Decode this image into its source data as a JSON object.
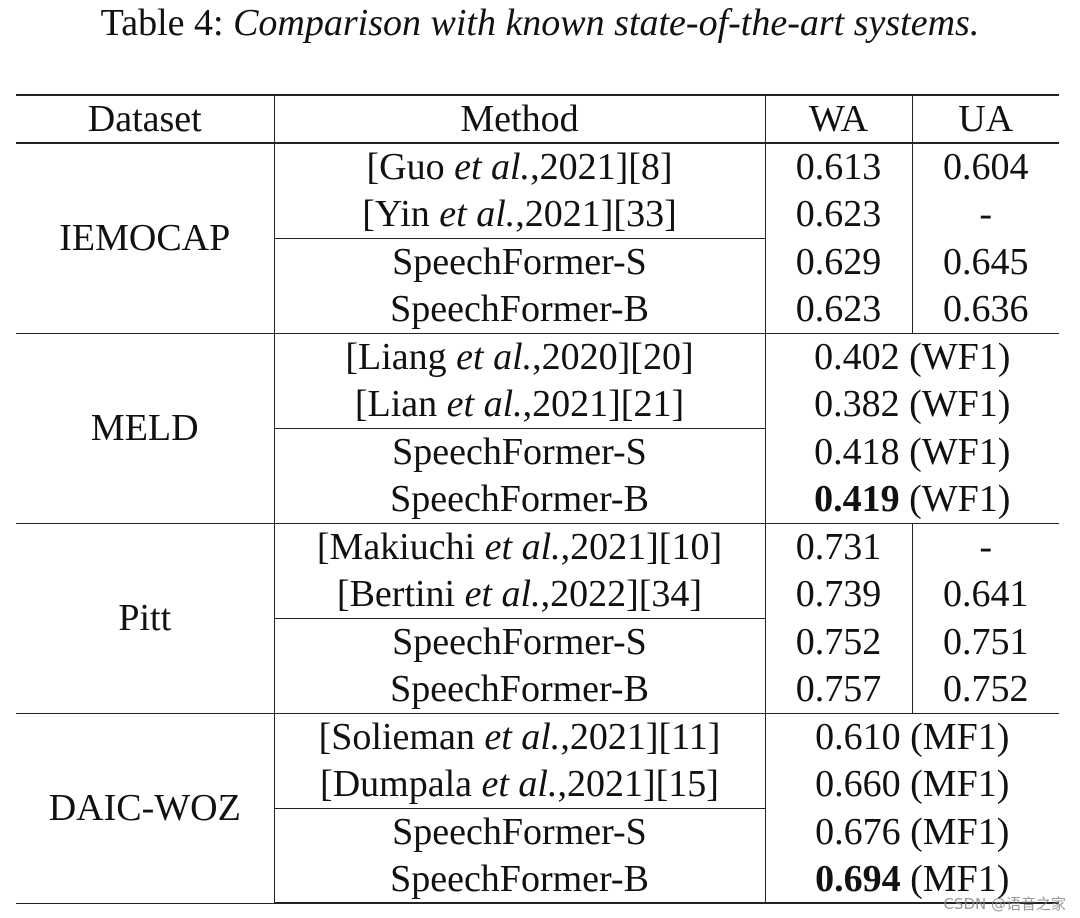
{
  "caption": {
    "label": "Table 4:",
    "text": "Comparison with known state-of-the-art systems."
  },
  "headers": {
    "dataset": "Dataset",
    "method": "Method",
    "wa": "WA",
    "ua": "UA"
  },
  "groups": [
    {
      "dataset": "IEMOCAP",
      "rows": [
        {
          "pre": "[Guo ",
          "etal": "et al.",
          "post": ",2021][8]",
          "wa": "0.613",
          "ua": "0.604"
        },
        {
          "pre": "[Yin ",
          "etal": "et al.",
          "post": ",2021][33]",
          "wa": "0.623",
          "ua": "-"
        },
        {
          "method": "SpeechFormer-S",
          "wa": "0.629",
          "ua": "0.645"
        },
        {
          "method": "SpeechFormer-B",
          "wa": "0.623",
          "ua": "0.636"
        }
      ]
    },
    {
      "dataset": "MELD",
      "rows": [
        {
          "pre": "[Liang ",
          "etal": "et al.",
          "post": ",2020][20]",
          "value": "0.402",
          "suffix": " (WF1)"
        },
        {
          "pre": "[Lian ",
          "etal": "et al.",
          "post": ",2021][21]",
          "value": "0.382",
          "suffix": " (WF1)"
        },
        {
          "method": "SpeechFormer-S",
          "value": "0.418",
          "suffix": " (WF1)"
        },
        {
          "method": "SpeechFormer-B",
          "value": "0.419",
          "suffix": " (WF1)"
        }
      ]
    },
    {
      "dataset": "Pitt",
      "rows": [
        {
          "pre": "[Makiuchi ",
          "etal": "et al.",
          "post": ",2021][10]",
          "wa": "0.731",
          "ua": "-"
        },
        {
          "pre": "[Bertini ",
          "etal": "et al.",
          "post": ",2022][34]",
          "wa": "0.739",
          "ua": "0.641"
        },
        {
          "method": "SpeechFormer-S",
          "wa": "0.752",
          "ua": "0.751"
        },
        {
          "method": "SpeechFormer-B",
          "wa": "0.757",
          "ua": "0.752"
        }
      ]
    },
    {
      "dataset": "DAIC-WOZ",
      "rows": [
        {
          "pre": "[Solieman ",
          "etal": "et al.",
          "post": ",2021][11]",
          "value": "0.610",
          "suffix": " (MF1)"
        },
        {
          "pre": "[Dumpala ",
          "etal": "et al.",
          "post": ",2021][15]",
          "value": "0.660",
          "suffix": " (MF1)"
        },
        {
          "method": "SpeechFormer-S",
          "value": "0.676",
          "suffix": " (MF1)"
        },
        {
          "method": "SpeechFormer-B",
          "value": "0.694",
          "suffix": " (MF1)"
        }
      ]
    }
  ],
  "watermark": "CSDN @语音之家"
}
